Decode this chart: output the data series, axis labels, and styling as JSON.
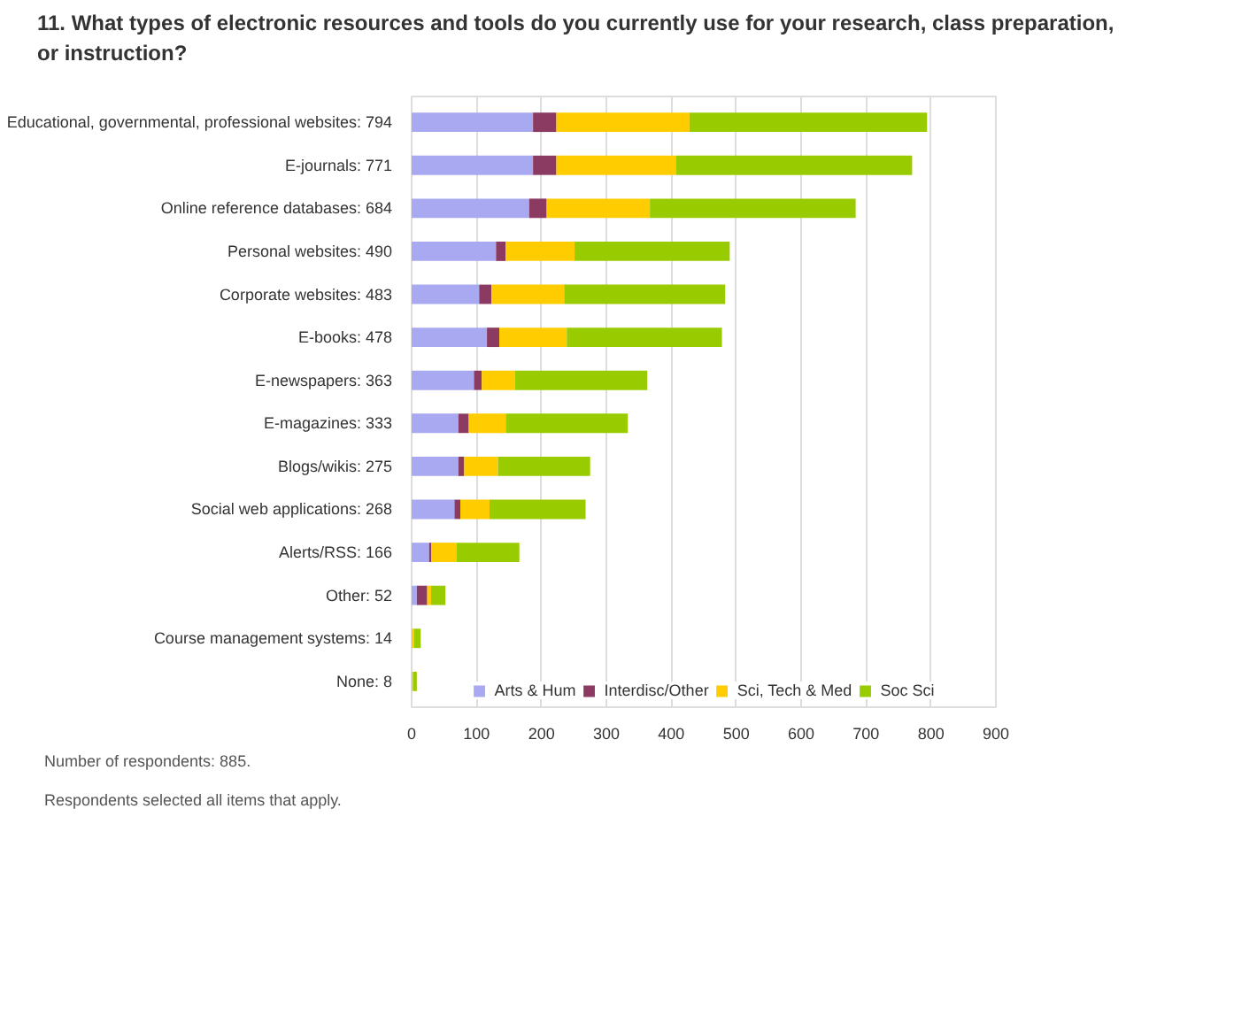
{
  "chart_data": {
    "type": "bar",
    "orientation": "horizontal",
    "stacked": true,
    "title": "11. What types of electronic resources and tools do you currently use for your research, class preparation, or instruction?",
    "categories": [
      "Educational, governmental, professional websites: 794",
      "E-journals: 771",
      "Online reference databases: 684",
      "Personal websites: 490",
      "Corporate websites: 483",
      "E-books: 478",
      "E-newspapers: 363",
      "E-magazines: 333",
      "Blogs/wikis: 275",
      "Social web applications: 268",
      "Alerts/RSS: 166",
      "Other: 52",
      "Course management systems: 14",
      "None: 8"
    ],
    "series": [
      {
        "name": "Arts & Hum",
        "color": "#a9a9f2",
        "values": [
          187,
          187,
          181,
          130,
          104,
          116,
          96,
          72,
          72,
          66,
          27,
          8,
          0,
          0
        ]
      },
      {
        "name": "Interdisc/Other",
        "color": "#8b3a62",
        "values": [
          36,
          36,
          27,
          15,
          19,
          19,
          12,
          16,
          9,
          9,
          3,
          16,
          0,
          0
        ]
      },
      {
        "name": "Sci, Tech & Med",
        "color": "#ffcc00",
        "values": [
          205,
          184,
          159,
          106,
          112,
          104,
          51,
          57,
          52,
          45,
          39,
          6,
          4,
          2
        ]
      },
      {
        "name": "Soc Sci",
        "color": "#99cc00",
        "values": [
          366,
          364,
          317,
          239,
          248,
          239,
          204,
          188,
          142,
          148,
          97,
          22,
          10,
          6
        ]
      }
    ],
    "xlim": [
      0,
      900
    ],
    "xticks": [
      0,
      100,
      200,
      300,
      400,
      500,
      600,
      700,
      800,
      900
    ],
    "grid": "x",
    "legend": "bottom",
    "annotations": [
      "Number of respondents: 885.",
      "Respondents selected all items that apply."
    ]
  }
}
